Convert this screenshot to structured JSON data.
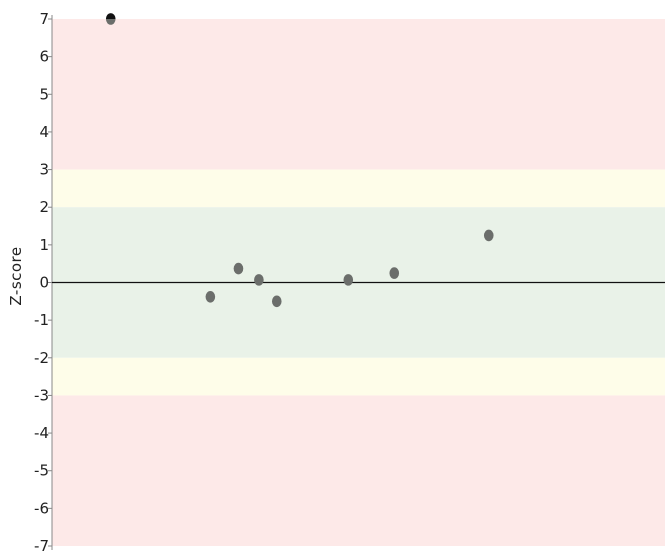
{
  "chart_data": {
    "type": "scatter",
    "title": "",
    "xlabel": "",
    "ylabel": "Z-score",
    "ylim": [
      -7,
      7
    ],
    "xlim": [
      0,
      12
    ],
    "y_ticks": [
      "7",
      "6",
      "5",
      "4",
      "3",
      "2",
      "1",
      "0",
      "-1",
      "-2",
      "-3",
      "-4",
      "-5",
      "-6",
      "-7"
    ],
    "grid": false,
    "legend": "none",
    "reference_line": 0,
    "bands": [
      {
        "from": 3,
        "to": 7,
        "color": "#fde9e8"
      },
      {
        "from": 2,
        "to": 3,
        "color": "#fefde9"
      },
      {
        "from": -2,
        "to": 2,
        "color": "#e9f2e8"
      },
      {
        "from": -3,
        "to": -2,
        "color": "#fefde9"
      },
      {
        "from": -7,
        "to": -3,
        "color": "#fde9e8"
      }
    ],
    "series": [
      {
        "color": "#6b6e6b",
        "points": [
          {
            "x": 1.15,
            "y": 7.0
          },
          {
            "x": 3.1,
            "y": -0.38
          },
          {
            "x": 3.65,
            "y": 0.37
          },
          {
            "x": 4.05,
            "y": 0.07
          },
          {
            "x": 4.4,
            "y": -0.5
          },
          {
            "x": 5.8,
            "y": 0.07
          },
          {
            "x": 6.7,
            "y": 0.25
          },
          {
            "x": 8.55,
            "y": 1.25
          }
        ]
      }
    ]
  }
}
